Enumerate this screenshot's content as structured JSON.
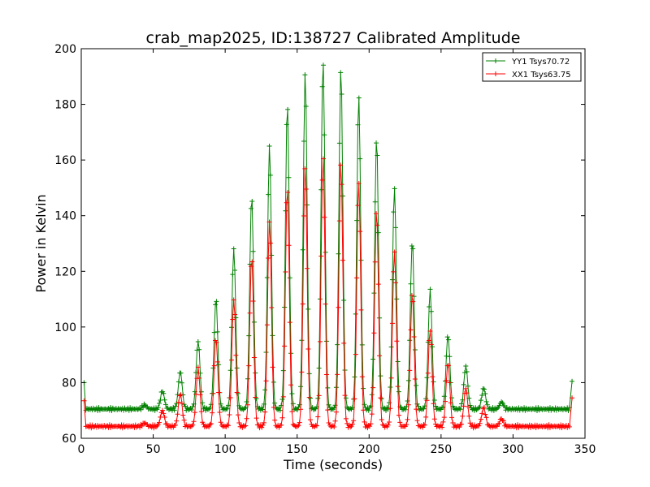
{
  "chart_data": {
    "type": "line",
    "title": "crab_map2025, ID:138727 Calibrated Amplitude",
    "xlabel": "Time (seconds)",
    "ylabel": "Power in Kelvin",
    "xlim": [
      0,
      350
    ],
    "ylim": [
      60,
      200
    ],
    "xticks": [
      0,
      50,
      100,
      150,
      200,
      250,
      300,
      350
    ],
    "yticks": [
      60,
      80,
      100,
      120,
      140,
      160,
      180,
      200
    ],
    "grid": false,
    "legend_position": "top-right",
    "marker": "+",
    "scan": {
      "start_time": 2,
      "end_time": 341,
      "sample_interval": 0.75,
      "first_peak_time": 44.0,
      "peak_spacing": 12.4
    },
    "series": [
      {
        "name": "YY1 Tsys70.72",
        "color": "#008000",
        "baseline": 70.5,
        "edge_values": [
          80,
          80.5
        ],
        "peaks": [
          72,
          77,
          84,
          95,
          110,
          128,
          147,
          165,
          180,
          191,
          196,
          193,
          183,
          168,
          150,
          131,
          113,
          97,
          86,
          78,
          73
        ]
      },
      {
        "name": "XX1 Tsys63.75",
        "color": "#ff0000",
        "baseline": 64.3,
        "edge_values": [
          73.5,
          74.5
        ],
        "peaks": [
          65.5,
          70,
          76,
          85,
          96,
          110,
          125,
          138,
          150,
          158,
          161,
          159,
          152,
          142,
          127,
          112,
          99,
          87,
          78,
          71,
          67
        ]
      }
    ]
  }
}
